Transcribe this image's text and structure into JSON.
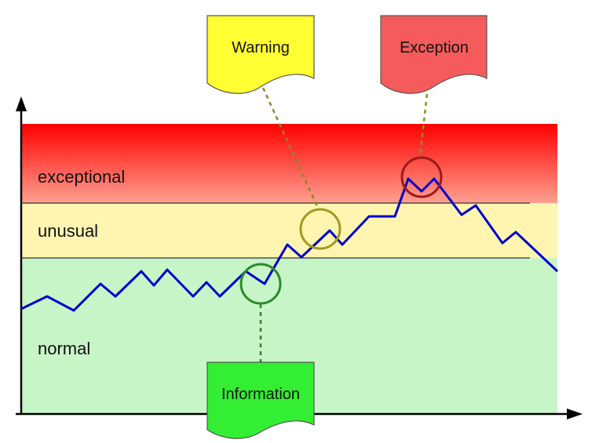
{
  "zones": {
    "exceptional": {
      "label": "exceptional",
      "color_top": "#ff0000",
      "color_bottom": "#ffa090"
    },
    "unusual": {
      "label": "unusual",
      "color": "#fff5b0"
    },
    "normal": {
      "label": "normal",
      "color": "#c8f5c8"
    }
  },
  "callouts": {
    "warning": {
      "label": "Warning",
      "color": "#ffff33",
      "circle_color": "#9e9a20",
      "line_color": "#8a8a20"
    },
    "exception": {
      "label": "Exception",
      "color": "#f55b5b",
      "circle_color": "#9a1a1a",
      "line_color": "#7a9a20"
    },
    "information": {
      "label": "Information",
      "color": "#33ee33",
      "circle_color": "#2a8a2a",
      "line_color": "#3a7a3a"
    }
  },
  "colors": {
    "series_line": "#0000cc",
    "axis": "#000000",
    "threshold_line": "#333333"
  }
}
